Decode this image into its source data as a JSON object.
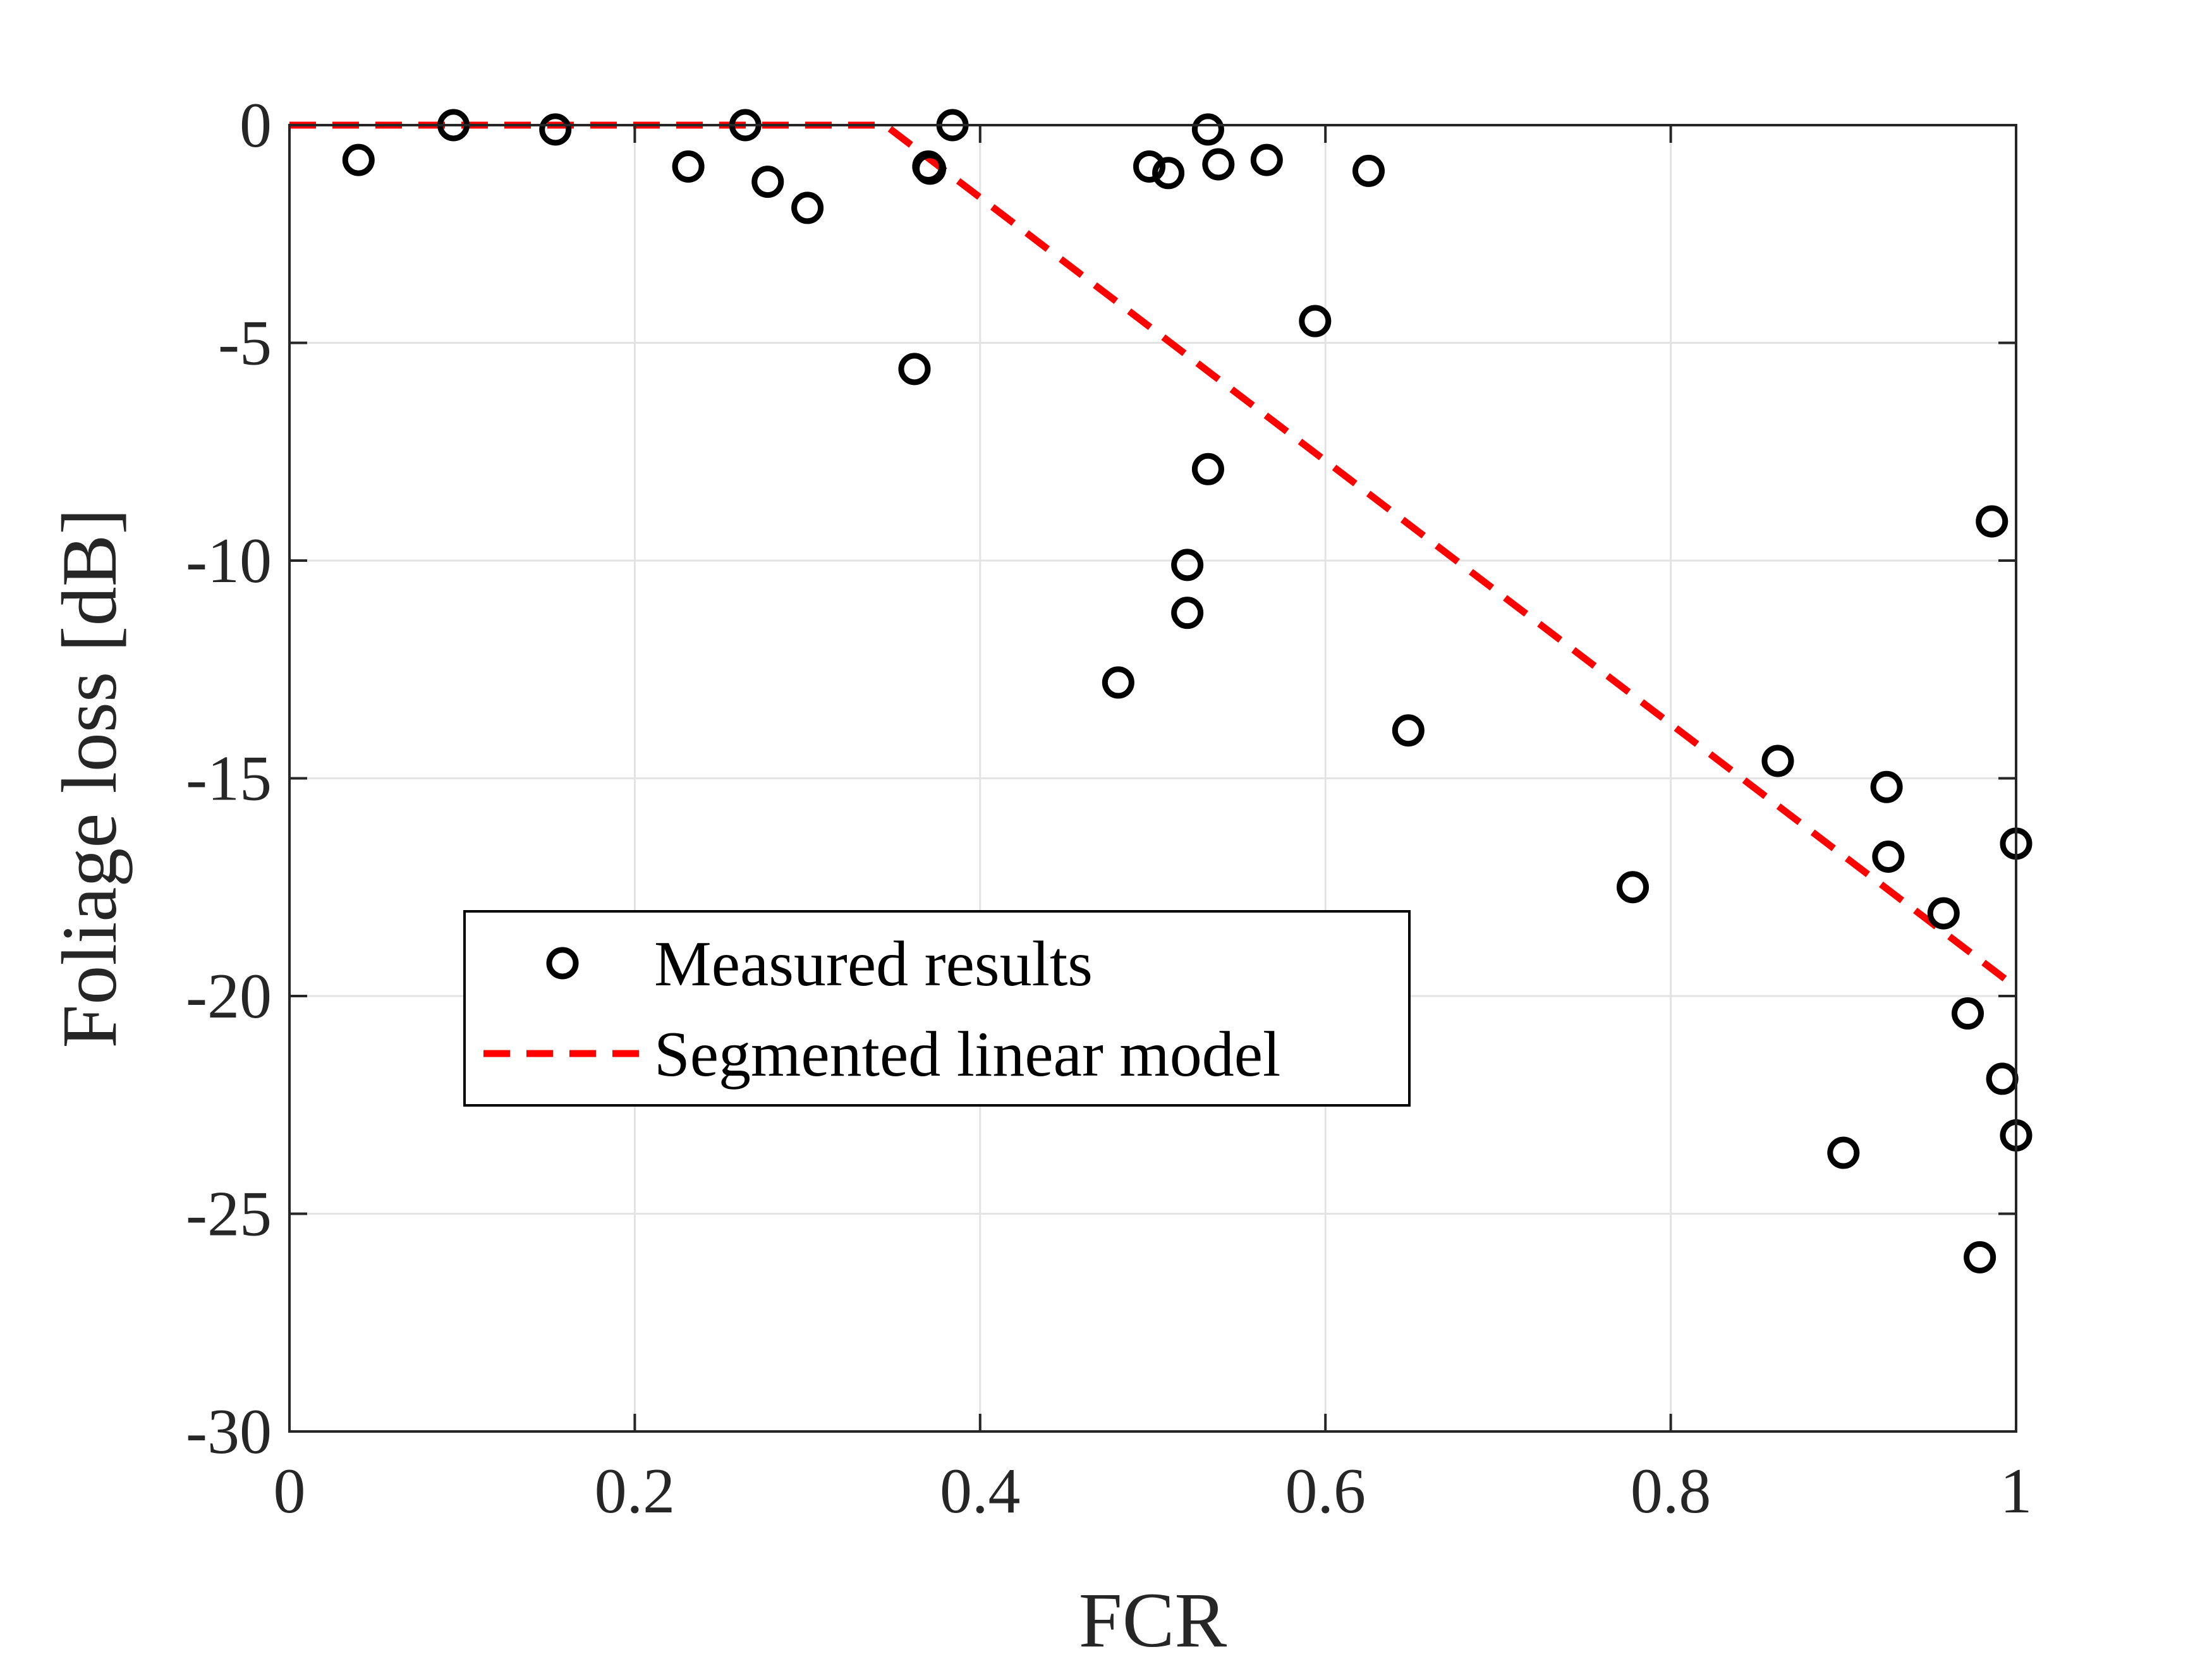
{
  "chart_data": {
    "type": "scatter",
    "title": "",
    "xlabel": "FCR",
    "ylabel": "Foliage loss [dB]",
    "xlim": [
      0,
      1
    ],
    "ylim": [
      -30,
      0
    ],
    "xticks": [
      0,
      0.2,
      0.4,
      0.6,
      0.8,
      1
    ],
    "yticks": [
      0,
      -5,
      -10,
      -15,
      -20,
      -25,
      -30
    ],
    "xtick_labels": [
      "0",
      "0.2",
      "0.4",
      "0.6",
      "0.8",
      "1"
    ],
    "ytick_labels": [
      "0",
      "-5",
      "-10",
      "-15",
      "-20",
      "-25",
      "-30"
    ],
    "grid": true,
    "legend_position": "center-left",
    "series": [
      {
        "name": "Measured results",
        "kind": "scatter",
        "marker": "open-circle",
        "color": "#000000",
        "x": [
          0.04,
          0.095,
          0.154,
          0.231,
          0.264,
          0.277,
          0.3,
          0.362,
          0.37,
          0.371,
          0.384,
          0.48,
          0.498,
          0.509,
          0.52,
          0.52,
          0.532,
          0.532,
          0.538,
          0.566,
          0.594,
          0.625,
          0.648,
          0.778,
          0.862,
          0.9,
          0.925,
          0.926,
          0.958,
          0.972,
          0.979,
          0.986,
          0.992,
          1.0,
          1.0
        ],
        "y": [
          -0.8,
          0.0,
          -0.1,
          -0.95,
          0.0,
          -1.3,
          -1.9,
          -5.6,
          -0.95,
          -1.0,
          0.0,
          -12.8,
          -0.95,
          -1.1,
          -10.1,
          -11.2,
          -7.9,
          -0.1,
          -0.9,
          -0.8,
          -4.5,
          -1.05,
          -13.9,
          -17.5,
          -14.6,
          -23.6,
          -15.2,
          -16.8,
          -18.1,
          -20.4,
          -26.0,
          -9.1,
          -21.9,
          -16.5,
          -23.2
        ]
      },
      {
        "name": "Segmented linear model",
        "kind": "line",
        "style": "dashed",
        "color": "#ff0000",
        "x": [
          0,
          0.345,
          1.0
        ],
        "y": [
          0,
          0,
          -19.8
        ]
      }
    ]
  }
}
